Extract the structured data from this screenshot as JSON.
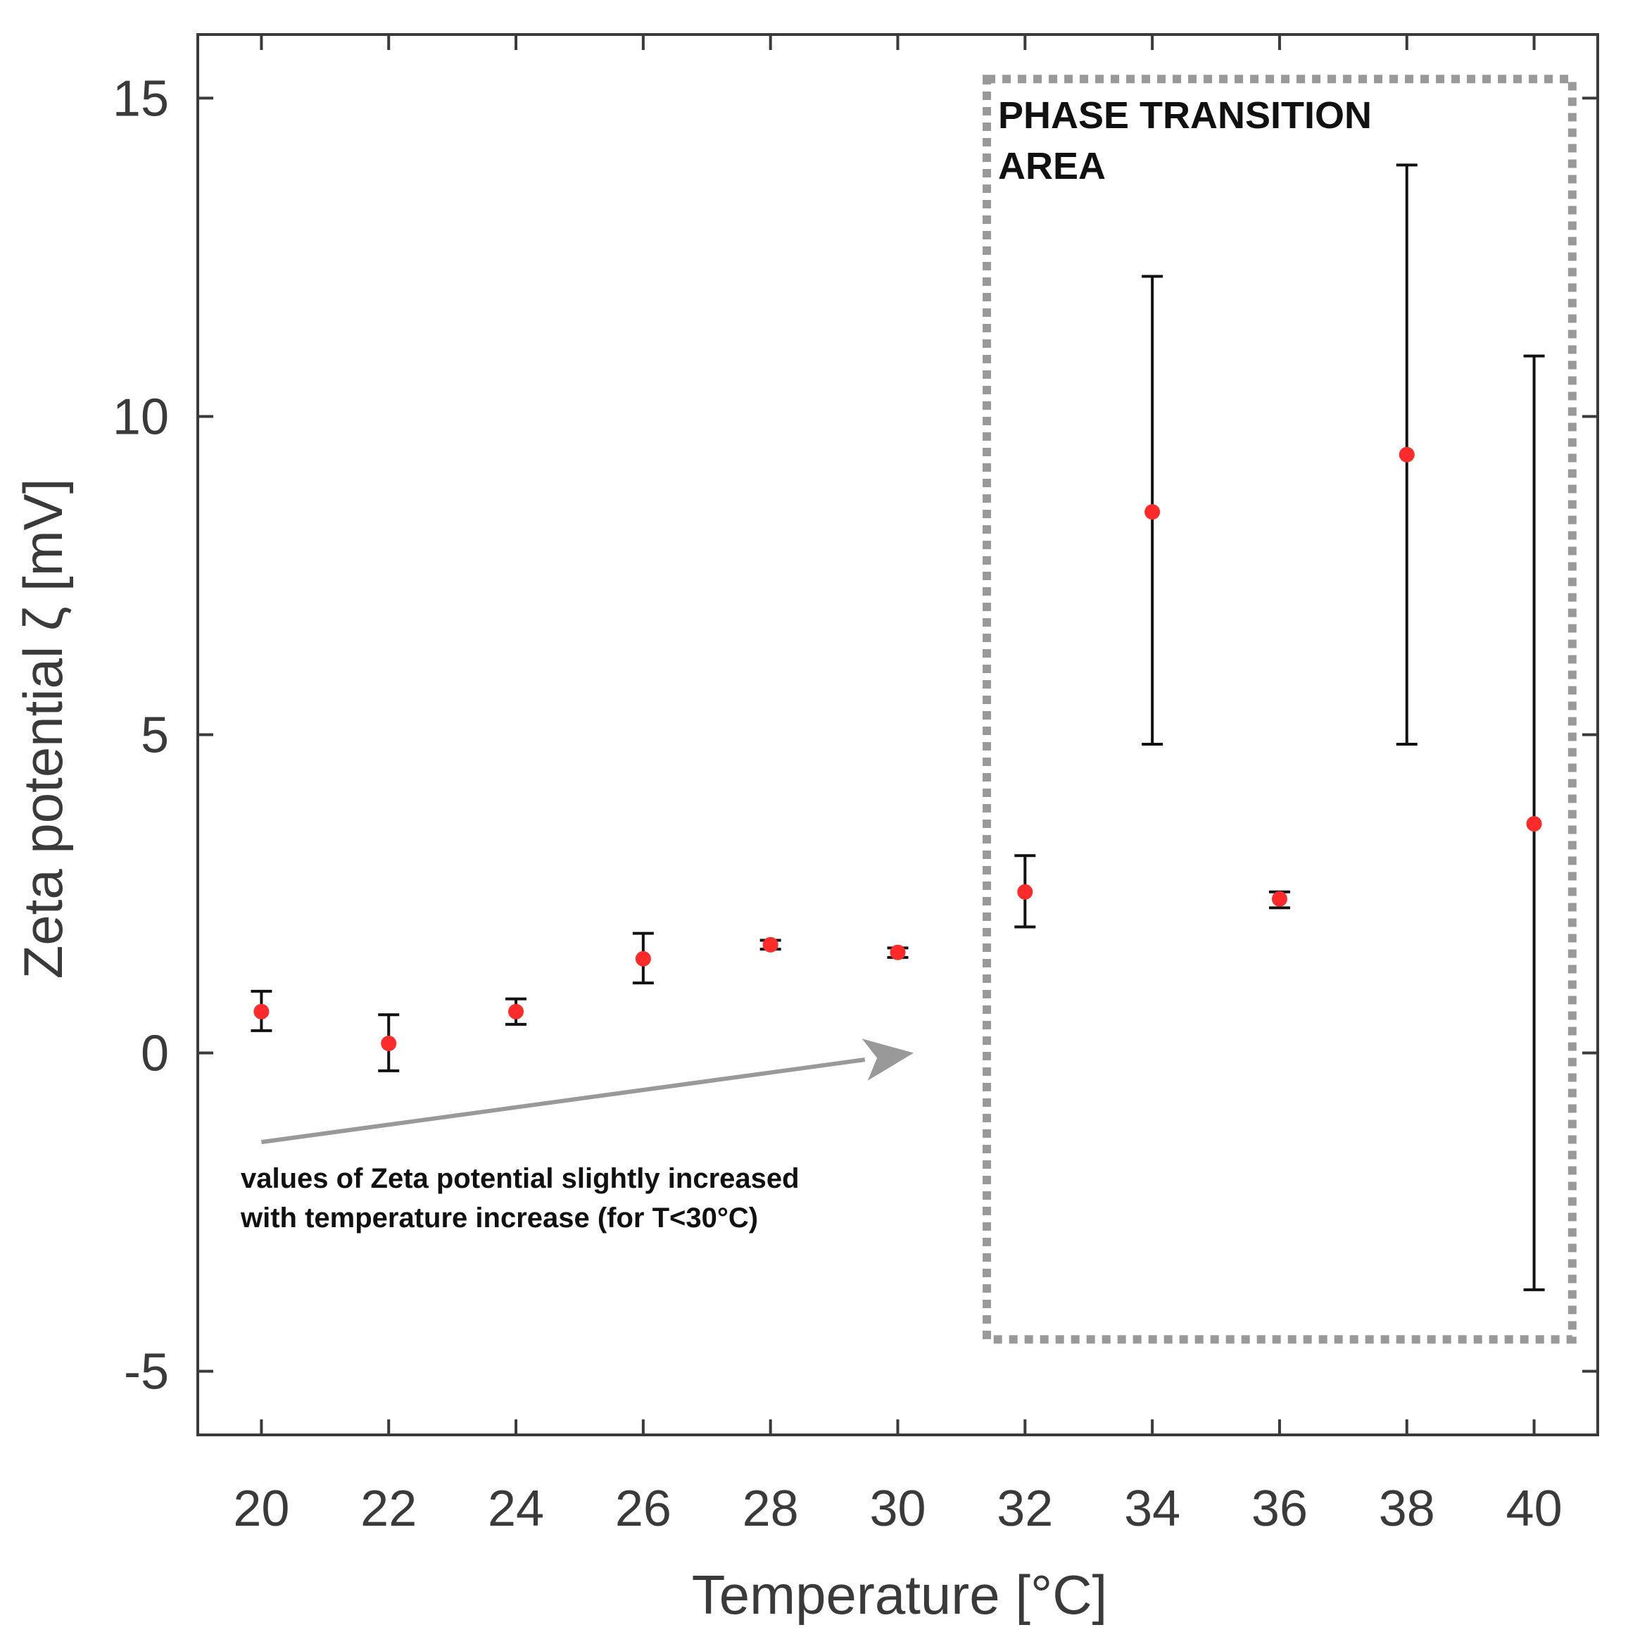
{
  "chart_data": {
    "type": "scatter",
    "title": "",
    "xlabel": "Temperature [°C]",
    "ylabel": "Zeta potential ζ [mV]",
    "xlim": [
      19,
      41
    ],
    "ylim": [
      -6,
      16
    ],
    "xticks": [
      20,
      22,
      24,
      26,
      28,
      30,
      32,
      34,
      36,
      38,
      40
    ],
    "yticks": [
      -5,
      0,
      5,
      10,
      15
    ],
    "grid": false,
    "series": [
      {
        "name": "Zeta potential",
        "marker_color": "#ff2a2a",
        "errorbar_color": "#111111",
        "points": [
          {
            "x": 20,
            "y": 0.65,
            "lo": 0.35,
            "hi": 0.97
          },
          {
            "x": 22,
            "y": 0.15,
            "lo": -0.28,
            "hi": 0.6
          },
          {
            "x": 24,
            "y": 0.65,
            "lo": 0.45,
            "hi": 0.85
          },
          {
            "x": 26,
            "y": 1.48,
            "lo": 1.1,
            "hi": 1.88
          },
          {
            "x": 28,
            "y": 1.7,
            "lo": 1.63,
            "hi": 1.77
          },
          {
            "x": 30,
            "y": 1.58,
            "lo": 1.5,
            "hi": 1.65
          },
          {
            "x": 32,
            "y": 2.53,
            "lo": 1.98,
            "hi": 3.1
          },
          {
            "x": 34,
            "y": 8.5,
            "lo": 4.85,
            "hi": 12.2
          },
          {
            "x": 36,
            "y": 2.42,
            "lo": 2.28,
            "hi": 2.53
          },
          {
            "x": 38,
            "y": 9.4,
            "lo": 4.85,
            "hi": 13.95
          },
          {
            "x": 40,
            "y": 3.6,
            "lo": -3.72,
            "hi": 10.95
          }
        ]
      }
    ],
    "annotations": {
      "phase_box": {
        "label_line1": "PHASE TRANSITION",
        "label_line2": "AREA",
        "x_range": [
          31.4,
          40.6
        ],
        "y_range": [
          -4.5,
          15.3
        ],
        "color": "#999999"
      },
      "trend_note": {
        "line1": "values of Zeta potential slightly increased",
        "line2": "with temperature increase (for T<30°C)",
        "arrow_from": [
          20,
          -1.4
        ],
        "arrow_to": [
          30.25,
          0
        ],
        "arrow_color": "#999999"
      }
    }
  }
}
